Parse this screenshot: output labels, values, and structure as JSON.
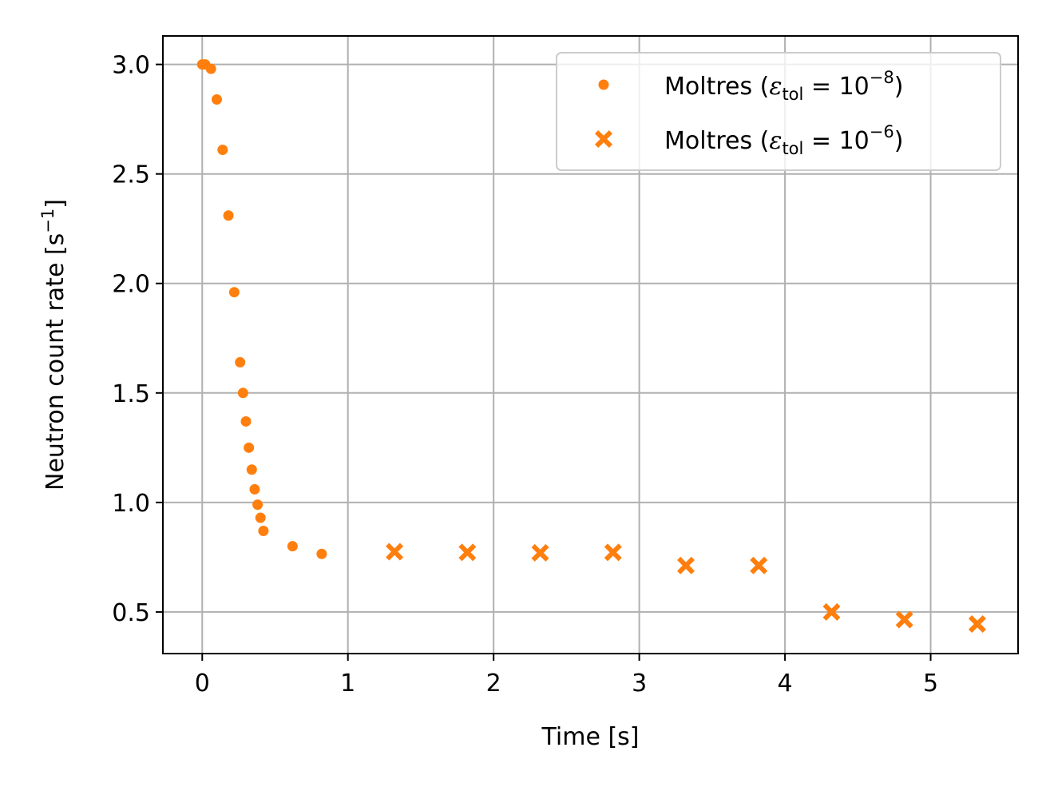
{
  "chart_data": {
    "type": "scatter",
    "xlabel": "Time [s]",
    "ylabel_main": "Neutron count rate [s",
    "ylabel_sup": "−1",
    "ylabel_end": "]",
    "xlim": [
      -0.27,
      5.6
    ],
    "ylim": [
      0.31,
      3.13
    ],
    "xticks": [
      0,
      1,
      2,
      3,
      4,
      5
    ],
    "xtick_labels": [
      "0",
      "1",
      "2",
      "3",
      "4",
      "5"
    ],
    "yticks": [
      0.5,
      1.0,
      1.5,
      2.0,
      2.5,
      3.0
    ],
    "ytick_labels": [
      "0.5",
      "1.0",
      "1.5",
      "2.0",
      "2.5",
      "3.0"
    ],
    "grid": true,
    "legend_position": "top-right",
    "color": "#ff7f0e",
    "series": [
      {
        "name": "Moltres (εtol = 10−8)",
        "legend_prefix": "Moltres (",
        "legend_eps": "ε",
        "legend_sub": "tol",
        "legend_eq": " = 10",
        "legend_sup": "−8",
        "legend_suffix": ")",
        "marker": "dot",
        "x": [
          0.0,
          0.02,
          0.06,
          0.1,
          0.14,
          0.18,
          0.22,
          0.26,
          0.28,
          0.3,
          0.32,
          0.34,
          0.36,
          0.38,
          0.4,
          0.42,
          0.62,
          0.82
        ],
        "y": [
          3.0,
          3.0,
          2.98,
          2.84,
          2.61,
          2.31,
          1.96,
          1.64,
          1.5,
          1.37,
          1.25,
          1.15,
          1.06,
          0.99,
          0.93,
          0.87,
          0.8,
          0.765
        ]
      },
      {
        "name": "Moltres (εtol = 10−6)",
        "legend_prefix": "Moltres (",
        "legend_eps": "ε",
        "legend_sub": "tol",
        "legend_eq": " = 10",
        "legend_sup": "−6",
        "legend_suffix": ")",
        "marker": "x-filled",
        "x": [
          1.32,
          1.82,
          2.32,
          2.82,
          3.32,
          3.82,
          4.32,
          4.82,
          5.32
        ],
        "y": [
          0.775,
          0.772,
          0.77,
          0.772,
          0.712,
          0.712,
          0.5,
          0.465,
          0.445
        ]
      }
    ]
  }
}
